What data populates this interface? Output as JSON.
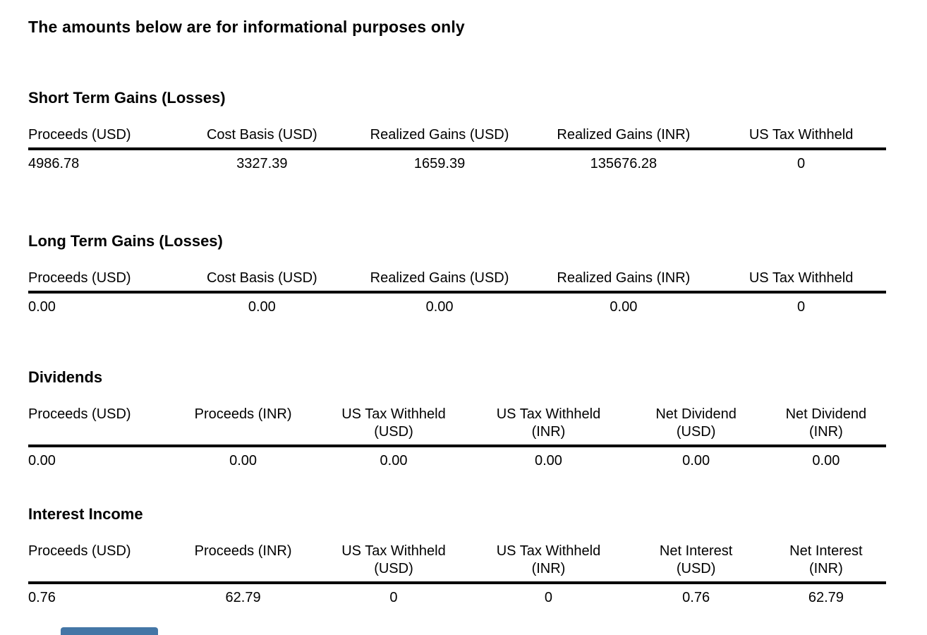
{
  "page": {
    "disclaimer": "The amounts below are for informational purposes only"
  },
  "sections": [
    {
      "title": "Short Term Gains (Losses)",
      "columns": [
        "Proceeds (USD)",
        "Cost Basis (USD)",
        "Realized Gains (USD)",
        "Realized Gains (INR)",
        "US Tax Withheld"
      ],
      "values": [
        "4986.78",
        "3327.39",
        "1659.39",
        "135676.28",
        "0"
      ]
    },
    {
      "title": "Long Term Gains (Losses)",
      "columns": [
        "Proceeds (USD)",
        "Cost Basis (USD)",
        "Realized Gains (USD)",
        "Realized Gains (INR)",
        "US Tax Withheld"
      ],
      "values": [
        "0.00",
        "0.00",
        "0.00",
        "0.00",
        "0"
      ]
    },
    {
      "title": "Dividends",
      "columns": [
        "Proceeds (USD)",
        "Proceeds (INR)",
        "US Tax Withheld\n(USD)",
        "US Tax Withheld\n(INR)",
        "Net Dividend\n(USD)",
        "Net Dividend\n(INR)"
      ],
      "values": [
        "0.00",
        "0.00",
        "0.00",
        "0.00",
        "0.00",
        "0.00"
      ]
    },
    {
      "title": "Interest Income",
      "columns": [
        "Proceeds (USD)",
        "Proceeds (INR)",
        "US Tax Withheld\n(USD)",
        "US Tax Withheld\n(INR)",
        "Net Interest\n(USD)",
        "Net Interest\n(INR)"
      ],
      "values": [
        "0.76",
        "62.79",
        "0",
        "0",
        "0.76",
        "62.79"
      ]
    }
  ],
  "partial_button": {
    "color": "#4476a6"
  },
  "colors": {
    "text": "#000000",
    "background": "#ffffff",
    "table_rule": "#000000"
  }
}
